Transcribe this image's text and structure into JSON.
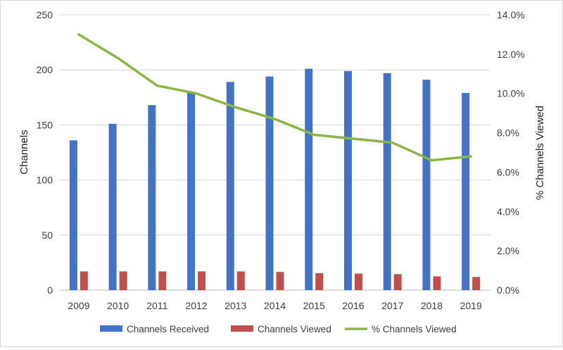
{
  "chart_data": {
    "type": "bar",
    "categories": [
      "2009",
      "2010",
      "2011",
      "2012",
      "2013",
      "2014",
      "2015",
      "2016",
      "2017",
      "2018",
      "2019"
    ],
    "series": [
      {
        "name": "Channels Received",
        "kind": "bar",
        "axis": "left",
        "color": "#4472c4",
        "values": [
          136,
          151,
          168,
          179,
          189,
          194,
          201,
          199,
          197,
          191,
          179
        ]
      },
      {
        "name": "Channels Viewed",
        "kind": "bar",
        "axis": "left",
        "color": "#c0504d",
        "values": [
          17,
          17,
          17,
          17,
          17,
          16.5,
          15.5,
          15,
          14.5,
          12.5,
          12
        ]
      },
      {
        "name": "% Channels Viewed",
        "kind": "line",
        "axis": "right",
        "color": "#8cb548",
        "values": [
          0.13,
          0.118,
          0.104,
          0.1,
          0.093,
          0.087,
          0.079,
          0.077,
          0.075,
          0.066,
          0.068
        ]
      }
    ],
    "y_left": {
      "label": "Channels",
      "min": 0,
      "max": 250,
      "ticks": [
        "0",
        "50",
        "100",
        "150",
        "200",
        "250"
      ]
    },
    "y_right": {
      "label": "% Channels Viewed",
      "min": 0,
      "max": 0.14,
      "ticks": [
        "0.0%",
        "2.0%",
        "4.0%",
        "6.0%",
        "8.0%",
        "10.0%",
        "12.0%",
        "14.0%"
      ]
    },
    "grid": true,
    "legend_position": "bottom"
  }
}
